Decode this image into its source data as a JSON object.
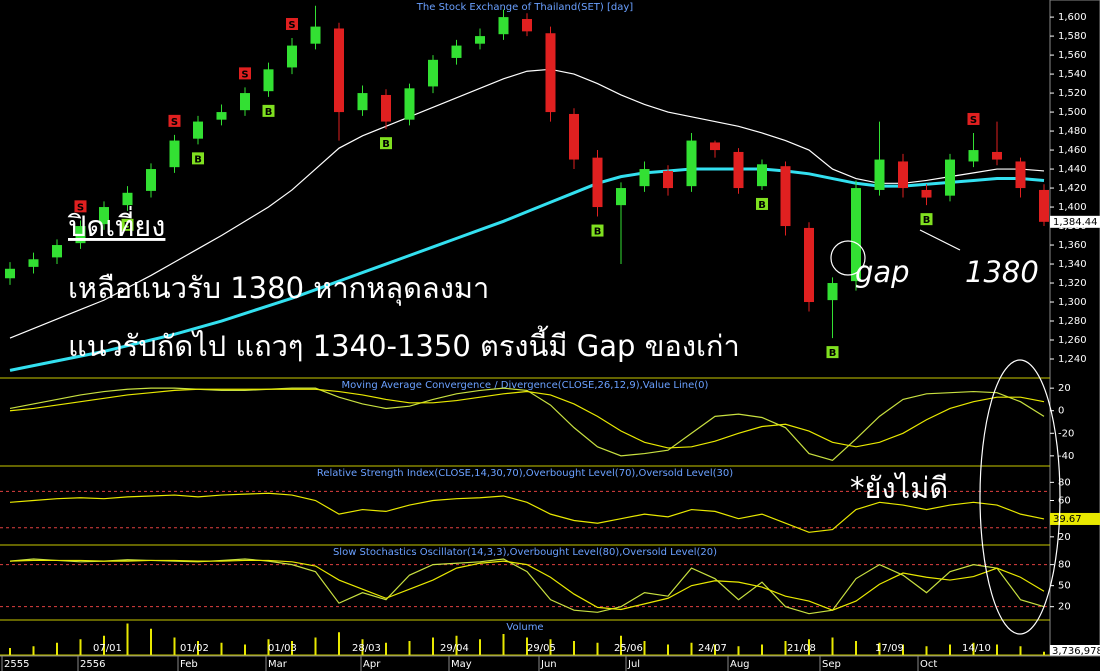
{
  "chart_data": [
    {
      "type": "candlestick",
      "title": "The Stock Exchange of Thailand(SET) [day]",
      "open": [
        1325,
        1337,
        1347,
        1362,
        1382,
        1402,
        1417,
        1442,
        1472,
        1492,
        1502,
        1522,
        1547,
        1572,
        1588,
        1502,
        1518,
        1492,
        1527,
        1557,
        1572,
        1582,
        1598,
        1583,
        1498,
        1452,
        1402,
        1422,
        1438,
        1422,
        1468,
        1458,
        1422,
        1443,
        1378,
        1302,
        1322,
        1418,
        1448,
        1418,
        1412,
        1448,
        1458,
        1448,
        1418
      ],
      "high": [
        1342,
        1352,
        1366,
        1386,
        1406,
        1422,
        1446,
        1476,
        1496,
        1508,
        1526,
        1552,
        1578,
        1612,
        1594,
        1528,
        1524,
        1530,
        1560,
        1576,
        1588,
        1608,
        1604,
        1590,
        1504,
        1460,
        1426,
        1448,
        1444,
        1478,
        1470,
        1462,
        1450,
        1448,
        1384,
        1326,
        1428,
        1490,
        1456,
        1424,
        1456,
        1478,
        1490,
        1452,
        1424
      ],
      "low": [
        1318,
        1330,
        1340,
        1356,
        1376,
        1396,
        1410,
        1436,
        1466,
        1486,
        1496,
        1516,
        1540,
        1566,
        1470,
        1496,
        1482,
        1486,
        1520,
        1550,
        1566,
        1576,
        1580,
        1490,
        1440,
        1390,
        1340,
        1416,
        1412,
        1416,
        1452,
        1414,
        1418,
        1370,
        1290,
        1262,
        1312,
        1412,
        1410,
        1402,
        1406,
        1442,
        1444,
        1410,
        1380
      ],
      "close": [
        1335,
        1345,
        1360,
        1380,
        1400,
        1415,
        1440,
        1470,
        1490,
        1500,
        1520,
        1545,
        1570,
        1590,
        1500,
        1520,
        1490,
        1525,
        1555,
        1570,
        1580,
        1600,
        1585,
        1500,
        1450,
        1400,
        1420,
        1440,
        1420,
        1470,
        1460,
        1420,
        1445,
        1380,
        1300,
        1320,
        1420,
        1450,
        1420,
        1410,
        1450,
        1460,
        1450,
        1420,
        1384.44
      ],
      "value_labels": [
        null,
        null,
        null,
        null,
        null,
        null,
        null,
        null,
        null,
        null,
        null,
        null,
        null,
        null,
        null,
        null,
        null,
        null,
        null,
        null,
        null,
        null,
        null,
        null,
        null,
        null,
        null,
        null,
        null,
        null,
        null,
        null,
        null,
        null,
        null,
        null,
        null,
        null,
        null,
        null,
        null,
        null,
        null,
        null,
        "1,384.44"
      ],
      "signals": [
        null,
        null,
        null,
        "S",
        null,
        "B",
        null,
        "S",
        "B",
        null,
        "S",
        "B",
        "S",
        null,
        null,
        null,
        "B",
        null,
        null,
        null,
        null,
        null,
        null,
        null,
        null,
        "B",
        null,
        null,
        null,
        null,
        null,
        null,
        "B",
        null,
        null,
        "B",
        null,
        null,
        null,
        "B",
        null,
        "S",
        null,
        null,
        null
      ],
      "up_color": "#33e033",
      "down_color": "#e02020",
      "series": [
        {
          "color": "#ffffff",
          "values": [
            1262,
            1272,
            1282,
            1292,
            1302,
            1315,
            1328,
            1342,
            1356,
            1370,
            1385,
            1400,
            1418,
            1440,
            1462,
            1475,
            1485,
            1495,
            1505,
            1515,
            1525,
            1535,
            1543,
            1545,
            1540,
            1530,
            1518,
            1508,
            1500,
            1495,
            1490,
            1485,
            1478,
            1470,
            1460,
            1440,
            1430,
            1425,
            1425,
            1428,
            1432,
            1436,
            1440,
            1440,
            1438
          ]
        },
        {
          "color": "#33e0f0",
          "values": [
            1228,
            1233,
            1238,
            1243,
            1248,
            1254,
            1260,
            1266,
            1273,
            1280,
            1288,
            1296,
            1304,
            1313,
            1322,
            1331,
            1340,
            1349,
            1358,
            1367,
            1376,
            1385,
            1395,
            1405,
            1415,
            1425,
            1432,
            1436,
            1438,
            1440,
            1440,
            1440,
            1440,
            1438,
            1435,
            1430,
            1425,
            1422,
            1422,
            1424,
            1426,
            1428,
            1430,
            1430,
            1428
          ]
        }
      ],
      "ylim": [
        1220,
        1618
      ],
      "yticks": [
        {
          "value": 1240,
          "label": "1,240"
        },
        {
          "value": 1260,
          "label": "1,260"
        },
        {
          "value": 1280,
          "label": "1,280"
        },
        {
          "value": 1300,
          "label": "1,300"
        },
        {
          "value": 1320,
          "label": "1,320"
        },
        {
          "value": 1340,
          "label": "1,340"
        },
        {
          "value": 1360,
          "label": "1,360"
        },
        {
          "value": 1380,
          "label": "1,380"
        },
        {
          "value": 1400,
          "label": "1,400"
        },
        {
          "value": 1420,
          "label": "1,420"
        },
        {
          "value": 1440,
          "label": "1,440"
        },
        {
          "value": 1460,
          "label": "1,460"
        },
        {
          "value": 1480,
          "label": "1,480"
        },
        {
          "value": 1500,
          "label": "1,500"
        },
        {
          "value": 1520,
          "label": "1,520"
        },
        {
          "value": 1540,
          "label": "1,540"
        },
        {
          "value": 1560,
          "label": "1,560"
        },
        {
          "value": 1580,
          "label": "1,580"
        },
        {
          "value": 1600,
          "label": "1,600"
        }
      ]
    },
    {
      "type": "line",
      "title": "Moving Average Convergence / Divergence(CLOSE,26,12,9),Value Line(0)",
      "series": [
        {
          "color": "#c8e040",
          "values": [
            2,
            6,
            10,
            14,
            17,
            19,
            20,
            20,
            19,
            18,
            18,
            19,
            20,
            20,
            12,
            6,
            2,
            4,
            10,
            15,
            18,
            20,
            18,
            5,
            -15,
            -32,
            -40,
            -38,
            -35,
            -20,
            -5,
            -3,
            -6,
            -15,
            -38,
            -44,
            -25,
            -5,
            10,
            15,
            16,
            17,
            16,
            8,
            -5
          ]
        },
        {
          "color": "#e8e800",
          "values": [
            0,
            2,
            5,
            8,
            11,
            14,
            16,
            18,
            19,
            19,
            19,
            19,
            19,
            19,
            17,
            14,
            10,
            7,
            7,
            9,
            12,
            15,
            17,
            14,
            6,
            -5,
            -18,
            -28,
            -33,
            -32,
            -27,
            -20,
            -14,
            -12,
            -18,
            -28,
            -32,
            -28,
            -20,
            -8,
            2,
            8,
            12,
            12,
            8
          ]
        }
      ],
      "ylim": [
        -49,
        29
      ],
      "yticks": [
        20,
        0,
        -20,
        -40
      ]
    },
    {
      "type": "line",
      "title": "Relative Strength Index(CLOSE,14,30,70),Overbought Level(70),Oversold Level(30)",
      "series": [
        {
          "color": "#e8e800",
          "values": [
            58,
            60,
            62,
            63,
            62,
            64,
            65,
            66,
            64,
            66,
            67,
            68,
            66,
            60,
            45,
            50,
            48,
            55,
            60,
            62,
            63,
            65,
            58,
            45,
            38,
            35,
            40,
            45,
            42,
            50,
            48,
            40,
            45,
            35,
            25,
            28,
            50,
            58,
            55,
            50,
            55,
            58,
            55,
            45,
            39.67
          ]
        }
      ],
      "levels": [
        70,
        30
      ],
      "level_color": "#e04040",
      "ylim": [
        11,
        98
      ],
      "yticks": [
        80,
        60,
        40,
        20
      ]
    },
    {
      "type": "line",
      "title": "Slow Stochastics Oscillator(14,3,3),Overbought Level(80),Oversold Level(20)",
      "series": [
        {
          "color": "#c8e040",
          "values": [
            85,
            88,
            86,
            84,
            85,
            87,
            86,
            85,
            84,
            86,
            88,
            85,
            80,
            70,
            25,
            40,
            30,
            65,
            80,
            82,
            84,
            88,
            70,
            30,
            15,
            12,
            20,
            40,
            35,
            75,
            60,
            30,
            55,
            20,
            10,
            15,
            60,
            80,
            65,
            40,
            70,
            80,
            75,
            30,
            20
          ]
        },
        {
          "color": "#e8e800",
          "values": [
            85,
            86,
            86,
            86,
            85,
            85,
            86,
            86,
            85,
            85,
            86,
            86,
            84,
            78,
            58,
            45,
            32,
            45,
            58,
            75,
            82,
            85,
            80,
            62,
            38,
            19,
            16,
            24,
            32,
            50,
            57,
            55,
            48,
            35,
            28,
            15,
            28,
            52,
            68,
            62,
            58,
            63,
            75,
            62,
            42
          ]
        }
      ],
      "levels": [
        80,
        20
      ],
      "level_color": "#e04040",
      "ylim": [
        1,
        108
      ],
      "yticks": [
        80,
        50,
        20
      ]
    },
    {
      "type": "bar",
      "title": "Volume",
      "color": "#e8e800",
      "values": [
        8000000,
        10000000,
        14000000,
        18000000,
        22000000,
        36000000,
        30000000,
        20000000,
        16000000,
        14000000,
        12000000,
        18000000,
        16000000,
        20000000,
        26000000,
        18000000,
        14000000,
        16000000,
        20000000,
        22000000,
        18000000,
        24000000,
        20000000,
        18000000,
        16000000,
        14000000,
        22000000,
        16000000,
        12000000,
        14000000,
        12000000,
        10000000,
        12000000,
        16000000,
        18000000,
        20000000,
        16000000,
        14000000,
        12000000,
        10000000,
        12000000,
        14000000,
        12000000,
        10000000,
        3736978
      ],
      "value_labels": [
        null,
        null,
        null,
        null,
        null,
        null,
        null,
        null,
        null,
        null,
        null,
        null,
        null,
        null,
        null,
        null,
        null,
        null,
        null,
        null,
        null,
        null,
        null,
        null,
        null,
        null,
        null,
        null,
        null,
        null,
        null,
        null,
        null,
        null,
        null,
        null,
        null,
        null,
        null,
        null,
        null,
        null,
        null,
        null,
        "3,736,978"
      ],
      "ylim": [
        0,
        40000000
      ]
    }
  ],
  "x_axis": {
    "dates": [
      "07/01",
      "01/02",
      "01/03",
      "28/03",
      "29/04",
      "29/05",
      "25/06",
      "24/07",
      "21/08",
      "17/09",
      "14/10"
    ],
    "periods": [
      "2555",
      "2556",
      "Feb",
      "Mar",
      "Apr",
      "May",
      "Jun",
      "Jul",
      "Aug",
      "Sep",
      "Oct"
    ]
  },
  "annotations": [
    "ปิดเที่ยง",
    "เหลือแนวรับ 1380 หากหลุดลงมา",
    "แนวรับถัดไป แถวๆ 1340-1350 ตรงนี้มี Gap ของเก่า",
    "gap",
    "1380",
    "*ยังไม่ดี"
  ]
}
